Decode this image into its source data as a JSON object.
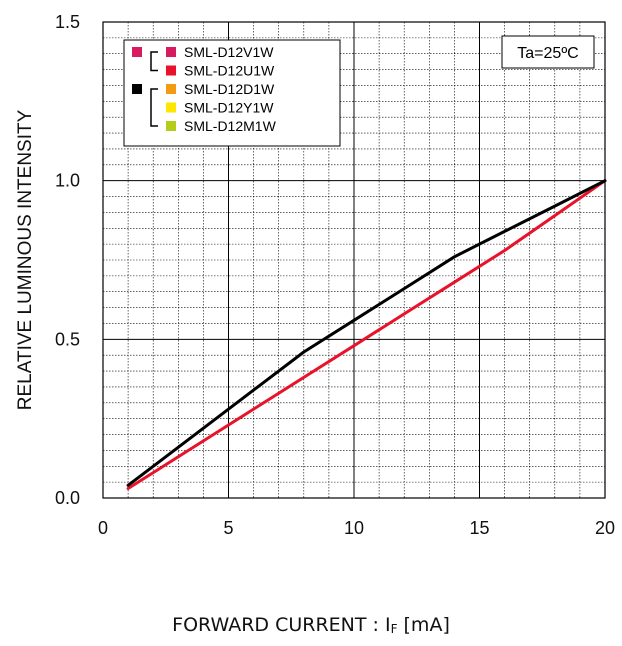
{
  "chart_data": {
    "type": "line",
    "xlabel": "FORWARD CURRENT : ",
    "xlabel_symbol": "I",
    "xlabel_subscript": "F",
    "xlabel_unit": " [mA]",
    "ylabel": "RELATIVE LUMINOUS INTENSITY",
    "xlim": [
      0,
      20
    ],
    "ylim": [
      0,
      1.5
    ],
    "xticks": [
      0,
      5,
      10,
      15,
      20
    ],
    "xtick_labels": [
      "0",
      "5",
      "10",
      "15",
      "20"
    ],
    "yticks": [
      0,
      0.5,
      1,
      1.5
    ],
    "ytick_labels": [
      "0.0",
      "0.5",
      "1.0",
      "1.5"
    ],
    "grid": true,
    "annotation": "Ta=25ºC",
    "legend_placement": "top-left",
    "legend": {
      "groups": [
        {
          "marker_color": "#d81b60",
          "entries": [
            {
              "label": "SML-D12V1W",
              "color": "#d81b60"
            },
            {
              "label": "SML-D12U1W",
              "color": "#e8132a"
            }
          ]
        },
        {
          "marker_color": "#000000",
          "entries": [
            {
              "label": "SML-D12D1W",
              "color": "#f39c12"
            },
            {
              "label": "SML-D12Y1W",
              "color": "#ffe600"
            },
            {
              "label": "SML-D12M1W",
              "color": "#b5cc18"
            }
          ]
        }
      ]
    },
    "series": [
      {
        "color": "#e8132a",
        "x": [
          1,
          2,
          4,
          6,
          8,
          10,
          12,
          14,
          16,
          18,
          20
        ],
        "y": [
          0.03,
          0.08,
          0.18,
          0.28,
          0.38,
          0.48,
          0.58,
          0.68,
          0.78,
          0.89,
          1.0
        ]
      },
      {
        "color": "#000000",
        "x": [
          1,
          2,
          4,
          6,
          8,
          10,
          12,
          14,
          16,
          18,
          20
        ],
        "y": [
          0.04,
          0.1,
          0.22,
          0.34,
          0.46,
          0.56,
          0.66,
          0.76,
          0.84,
          0.92,
          1.0
        ]
      }
    ]
  }
}
